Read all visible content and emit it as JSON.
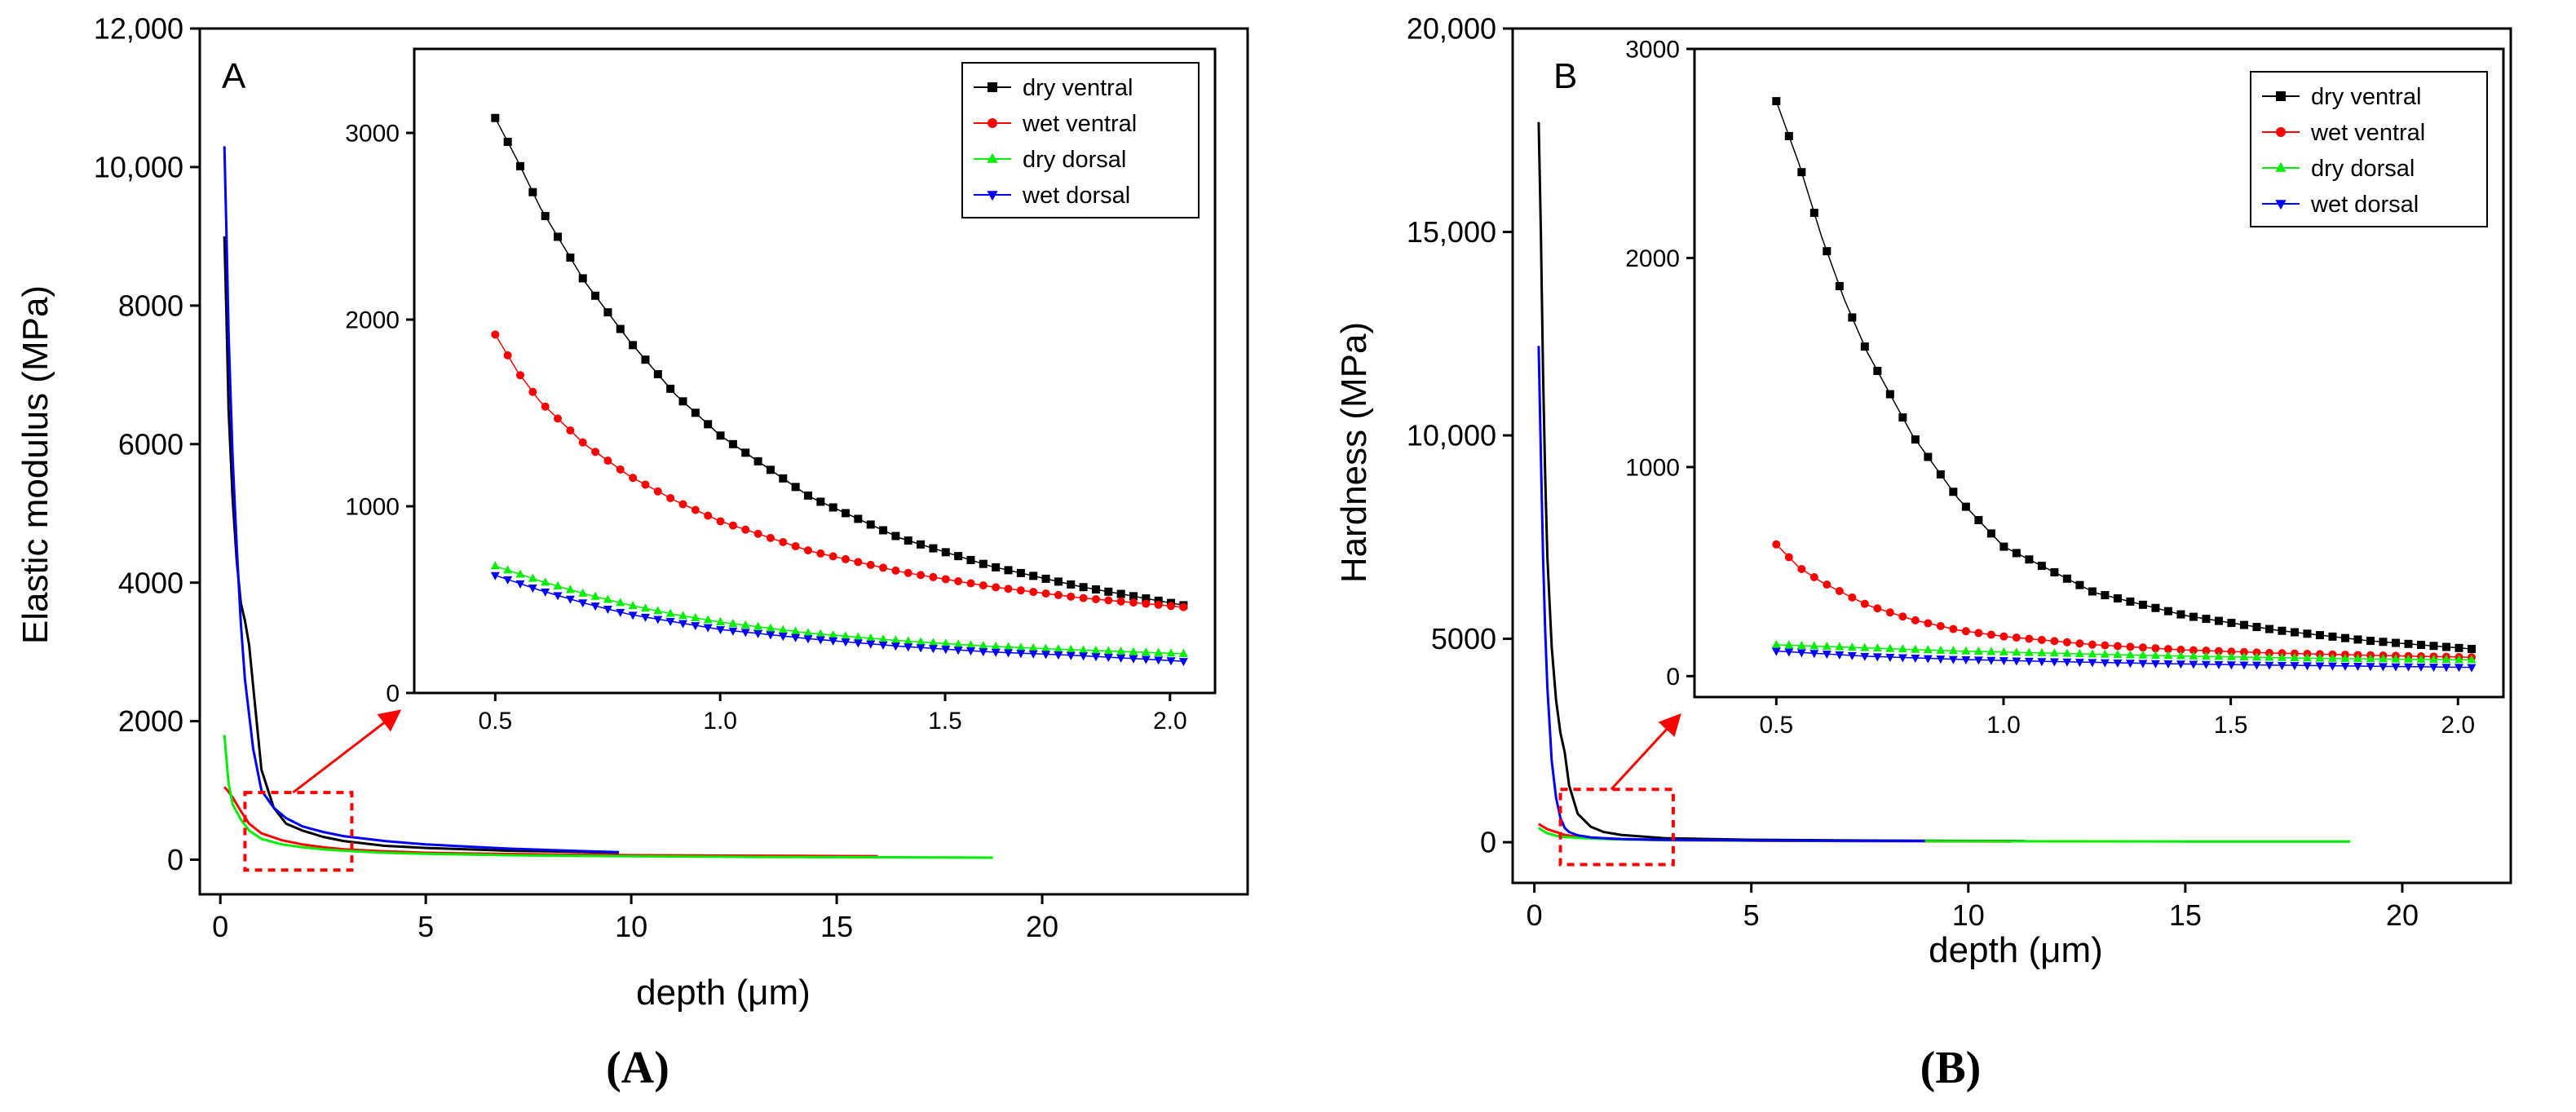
{
  "colors": {
    "dry_ventral": "#000000",
    "wet_ventral": "#ff0000",
    "dry_dorsal": "#00ee00",
    "wet_dorsal": "#0000ff",
    "zoom_box": "#ff0000"
  },
  "chart_data": [
    {
      "type": "line",
      "panel_letter": "A",
      "caption": "(A)",
      "xlabel": "depth (μm)",
      "ylabel": "Elastic modulus (MPa)",
      "xlim": [
        -0.5,
        25
      ],
      "ylim": [
        -500,
        12000
      ],
      "xticks": [
        0,
        5,
        10,
        15,
        20
      ],
      "yticks": [
        0,
        2000,
        4000,
        6000,
        8000,
        10000,
        12000
      ],
      "xtick_labels": [
        "0",
        "5",
        "10",
        "15",
        "20"
      ],
      "ytick_labels": [
        "0",
        "2000",
        "4000",
        "6000",
        "8000",
        "10,000",
        "12,000"
      ],
      "zoom_region": {
        "x": [
          0.6,
          3.2
        ],
        "y": [
          -150,
          970
        ]
      },
      "series": [
        {
          "name": "dry ventral",
          "color_key": "dry_ventral",
          "x": [
            0.1,
            0.15,
            0.2,
            0.3,
            0.4,
            0.5,
            0.6,
            0.7,
            0.8,
            1.0,
            1.3,
            1.6,
            2.0,
            2.5,
            3.0,
            4.0,
            5.0,
            6.0,
            7.0,
            8.0,
            9.0,
            9.7
          ],
          "y": [
            9000,
            7800,
            6500,
            5200,
            4300,
            3700,
            3450,
            3100,
            2500,
            1300,
            750,
            520,
            420,
            330,
            270,
            200,
            170,
            150,
            130,
            120,
            110,
            100
          ]
        },
        {
          "name": "wet ventral",
          "color_key": "wet_ventral",
          "x": [
            0.1,
            0.2,
            0.3,
            0.5,
            0.7,
            1.0,
            1.5,
            2.0,
            2.5,
            3.0,
            4.0,
            5.0,
            6.0,
            8.0,
            10.0,
            12.0,
            14.0,
            16.0
          ],
          "y": [
            1050,
            980,
            900,
            700,
            520,
            380,
            280,
            220,
            180,
            150,
            120,
            100,
            90,
            75,
            65,
            60,
            55,
            50
          ]
        },
        {
          "name": "dry dorsal",
          "color_key": "dry_dorsal",
          "x": [
            0.1,
            0.2,
            0.3,
            0.5,
            0.7,
            1.0,
            1.5,
            2.0,
            2.5,
            3.0,
            4.0,
            5.0,
            7.0,
            10.0,
            13.0,
            16.0,
            18.8
          ],
          "y": [
            1800,
            1100,
            800,
            580,
            420,
            300,
            220,
            180,
            150,
            130,
            100,
            85,
            65,
            50,
            40,
            35,
            30
          ]
        },
        {
          "name": "wet dorsal",
          "color_key": "wet_dorsal",
          "x": [
            0.1,
            0.15,
            0.2,
            0.3,
            0.4,
            0.5,
            0.6,
            0.8,
            1.0,
            1.3,
            1.6,
            2.0,
            2.5,
            3.0,
            4.0,
            5.0,
            6.0,
            7.0,
            8.0,
            9.0,
            9.7
          ],
          "y": [
            10300,
            9000,
            7600,
            5800,
            4500,
            3400,
            2600,
            1600,
            1000,
            750,
            600,
            480,
            400,
            340,
            270,
            220,
            190,
            160,
            140,
            120,
            110
          ]
        }
      ],
      "inset": {
        "xlim": [
          0.32,
          2.1
        ],
        "ylim": [
          0,
          3450
        ],
        "xticks": [
          0.5,
          1.0,
          1.5,
          2.0
        ],
        "yticks": [
          0,
          1000,
          2000,
          3000
        ],
        "xtick_labels": [
          "0.5",
          "1.0",
          "1.5",
          "2.0"
        ],
        "ytick_labels": [
          "0",
          "1000",
          "2000",
          "3000"
        ],
        "legend_position": "top-right",
        "series": [
          {
            "name": "dry ventral",
            "color_key": "dry_ventral",
            "marker": "square",
            "x": [
              0.5,
              0.55,
              0.6,
              0.7,
              0.8,
              0.9,
              1.0,
              1.2,
              1.4,
              1.6,
              1.8,
              2.03
            ],
            "y": [
              3080,
              2850,
              2600,
              2200,
              1880,
              1600,
              1380,
              1050,
              830,
              680,
              570,
              470
            ]
          },
          {
            "name": "wet ventral",
            "color_key": "wet_ventral",
            "marker": "circle",
            "x": [
              0.5,
              0.55,
              0.6,
              0.7,
              0.8,
              0.9,
              1.0,
              1.2,
              1.4,
              1.6,
              1.8,
              2.03
            ],
            "y": [
              1920,
              1720,
              1560,
              1330,
              1160,
              1030,
              920,
              760,
              650,
              570,
              510,
              460
            ]
          },
          {
            "name": "dry dorsal",
            "color_key": "dry_dorsal",
            "marker": "triangle-up",
            "x": [
              0.5,
              0.6,
              0.7,
              0.8,
              0.9,
              1.0,
              1.2,
              1.4,
              1.6,
              1.8,
              2.03
            ],
            "y": [
              680,
              600,
              530,
              470,
              420,
              380,
              320,
              280,
              250,
              230,
              210
            ]
          },
          {
            "name": "wet dorsal",
            "color_key": "wet_dorsal",
            "marker": "triangle-down",
            "x": [
              0.5,
              0.6,
              0.7,
              0.8,
              0.9,
              1.0,
              1.2,
              1.4,
              1.6,
              1.8,
              2.03
            ],
            "y": [
              630,
              550,
              480,
              420,
              380,
              340,
              290,
              250,
              220,
              200,
              170
            ]
          }
        ]
      }
    },
    {
      "type": "line",
      "panel_letter": "B",
      "caption": "(B)",
      "xlabel": "depth (μm)",
      "ylabel": "Hardness (MPa)",
      "xlim": [
        -0.5,
        22.5
      ],
      "ylim": [
        -1000,
        20000
      ],
      "xticks": [
        0,
        5,
        10,
        15,
        20
      ],
      "yticks": [
        0,
        5000,
        10000,
        15000,
        20000
      ],
      "xtick_labels": [
        "0",
        "5",
        "10",
        "15",
        "20"
      ],
      "ytick_labels": [
        "0",
        "5000",
        "10,000",
        "15,000",
        "20,000"
      ],
      "zoom_region": {
        "x": [
          0.6,
          3.2
        ],
        "y": [
          -550,
          1300
        ]
      },
      "series": [
        {
          "name": "dry ventral",
          "color_key": "dry_ventral",
          "x": [
            0.1,
            0.15,
            0.2,
            0.25,
            0.3,
            0.4,
            0.5,
            0.6,
            0.7,
            0.8,
            1.0,
            1.3,
            1.6,
            2.0,
            3.0,
            5.0,
            7.0,
            9.0,
            11.0,
            11.3
          ],
          "y": [
            17700,
            15000,
            11500,
            9000,
            7000,
            4800,
            3500,
            2700,
            2200,
            1400,
            700,
            380,
            250,
            180,
            100,
            60,
            45,
            35,
            30,
            28
          ]
        },
        {
          "name": "wet ventral",
          "color_key": "wet_ventral",
          "x": [
            0.1,
            0.2,
            0.3,
            0.5,
            0.7,
            1.0,
            1.5,
            2.0,
            3.0,
            5.0,
            8.0,
            11.0
          ],
          "y": [
            450,
            380,
            320,
            250,
            180,
            130,
            90,
            70,
            50,
            35,
            25,
            20
          ]
        },
        {
          "name": "dry dorsal",
          "color_key": "dry_dorsal",
          "x": [
            0.1,
            0.2,
            0.3,
            0.5,
            0.7,
            1.0,
            1.5,
            2.0,
            3.0,
            5.0,
            8.0,
            12.0,
            15.0,
            18.8
          ],
          "y": [
            350,
            280,
            220,
            160,
            130,
            110,
            85,
            70,
            55,
            40,
            30,
            22,
            18,
            15
          ]
        },
        {
          "name": "wet dorsal",
          "color_key": "wet_dorsal",
          "x": [
            0.1,
            0.15,
            0.2,
            0.25,
            0.3,
            0.4,
            0.5,
            0.6,
            0.7,
            0.8,
            1.0,
            1.3,
            1.6,
            2.0,
            3.0,
            5.0,
            7.0,
            9.0
          ],
          "y": [
            12200,
            9500,
            7000,
            5200,
            3800,
            2000,
            1100,
            600,
            350,
            250,
            170,
            120,
            100,
            80,
            60,
            45,
            38,
            30
          ]
        }
      ],
      "inset": {
        "xlim": [
          0.32,
          2.1
        ],
        "ylim": [
          -100,
          3000
        ],
        "xticks": [
          0.5,
          1.0,
          1.5,
          2.0
        ],
        "yticks": [
          0,
          1000,
          2000,
          3000
        ],
        "xtick_labels": [
          "0.5",
          "1.0",
          "1.5",
          "2.0"
        ],
        "ytick_labels": [
          "0",
          "1000",
          "2000",
          "3000"
        ],
        "legend_position": "top-right",
        "series": [
          {
            "name": "dry ventral",
            "color_key": "dry_ventral",
            "marker": "square",
            "x": [
              0.5,
              0.55,
              0.6,
              0.65,
              0.7,
              0.8,
              0.9,
              1.0,
              1.2,
              1.4,
              1.6,
              1.8,
              2.03
            ],
            "y": [
              2750,
              2450,
              2100,
              1800,
              1550,
              1150,
              850,
              620,
              400,
              290,
              220,
              170,
              130
            ]
          },
          {
            "name": "wet ventral",
            "color_key": "wet_ventral",
            "marker": "circle",
            "x": [
              0.5,
              0.55,
              0.6,
              0.7,
              0.8,
              0.9,
              1.0,
              1.2,
              1.4,
              1.6,
              1.8,
              2.03
            ],
            "y": [
              630,
              520,
              450,
              340,
              270,
              220,
              190,
              150,
              125,
              110,
              100,
              90
            ]
          },
          {
            "name": "dry dorsal",
            "color_key": "dry_dorsal",
            "marker": "triangle-up",
            "x": [
              0.5,
              0.7,
              0.9,
              1.1,
              1.3,
              1.5,
              1.7,
              1.9,
              2.03
            ],
            "y": [
              150,
              135,
              120,
              110,
              100,
              92,
              85,
              80,
              78
            ]
          },
          {
            "name": "wet dorsal",
            "color_key": "wet_dorsal",
            "marker": "triangle-down",
            "x": [
              0.5,
              0.7,
              0.9,
              1.1,
              1.3,
              1.5,
              1.7,
              1.9,
              2.03
            ],
            "y": [
              120,
              95,
              80,
              70,
              62,
              55,
              50,
              45,
              42
            ]
          }
        ]
      }
    }
  ]
}
